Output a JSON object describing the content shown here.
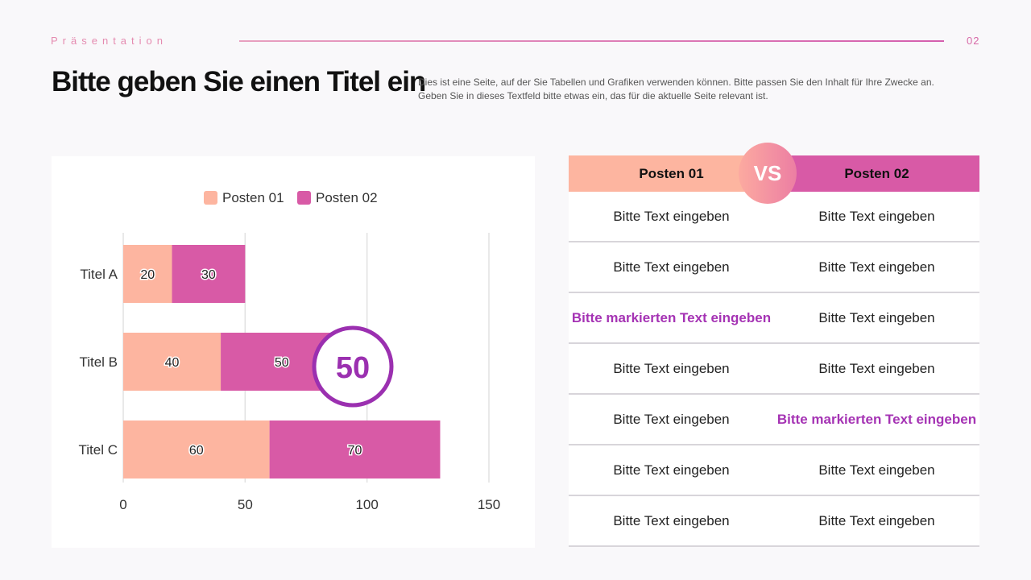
{
  "header": {
    "brand": "Präsentation",
    "page_number": "02",
    "title": "Bitte geben Sie einen Titel ein",
    "description_line1": "Dies ist eine Seite, auf der Sie Tabellen und Grafiken verwenden können. Bitte passen Sie den Inhalt für Ihre Zwecke an.",
    "description_line2": "Geben Sie in dieses Textfeld bitte etwas ein, das für die aktuelle Seite relevant ist."
  },
  "chart_data": {
    "type": "bar",
    "orientation": "horizontal",
    "stacked": true,
    "categories": [
      "Titel A",
      "Titel B",
      "Titel C"
    ],
    "series": [
      {
        "name": "Posten 01",
        "values": [
          20,
          40,
          60
        ],
        "color": "#fdb5a0"
      },
      {
        "name": "Posten 02",
        "values": [
          30,
          50,
          70
        ],
        "color": "#d85aa6"
      }
    ],
    "xlim": [
      0,
      150
    ],
    "xticks": [
      "0",
      "50",
      "100",
      "150"
    ],
    "grid": true,
    "legend": "top",
    "highlight": {
      "value": "50",
      "color": "#9b30b0"
    }
  },
  "table": {
    "vs": "VS",
    "headers": [
      "Posten 01",
      "Posten 02"
    ],
    "rows": [
      [
        "Bitte Text eingeben",
        "Bitte Text eingeben"
      ],
      [
        "Bitte Text eingeben",
        "Bitte Text eingeben"
      ],
      [
        "Bitte markierten Text eingeben",
        "Bitte Text eingeben"
      ],
      [
        "Bitte Text eingeben",
        "Bitte Text eingeben"
      ],
      [
        "Bitte Text eingeben",
        "Bitte markierten Text eingeben"
      ],
      [
        "Bitte Text eingeben",
        "Bitte Text eingeben"
      ],
      [
        "Bitte Text eingeben",
        "Bitte Text eingeben"
      ]
    ],
    "highlighted": [
      [
        2,
        0
      ],
      [
        4,
        1
      ]
    ]
  }
}
